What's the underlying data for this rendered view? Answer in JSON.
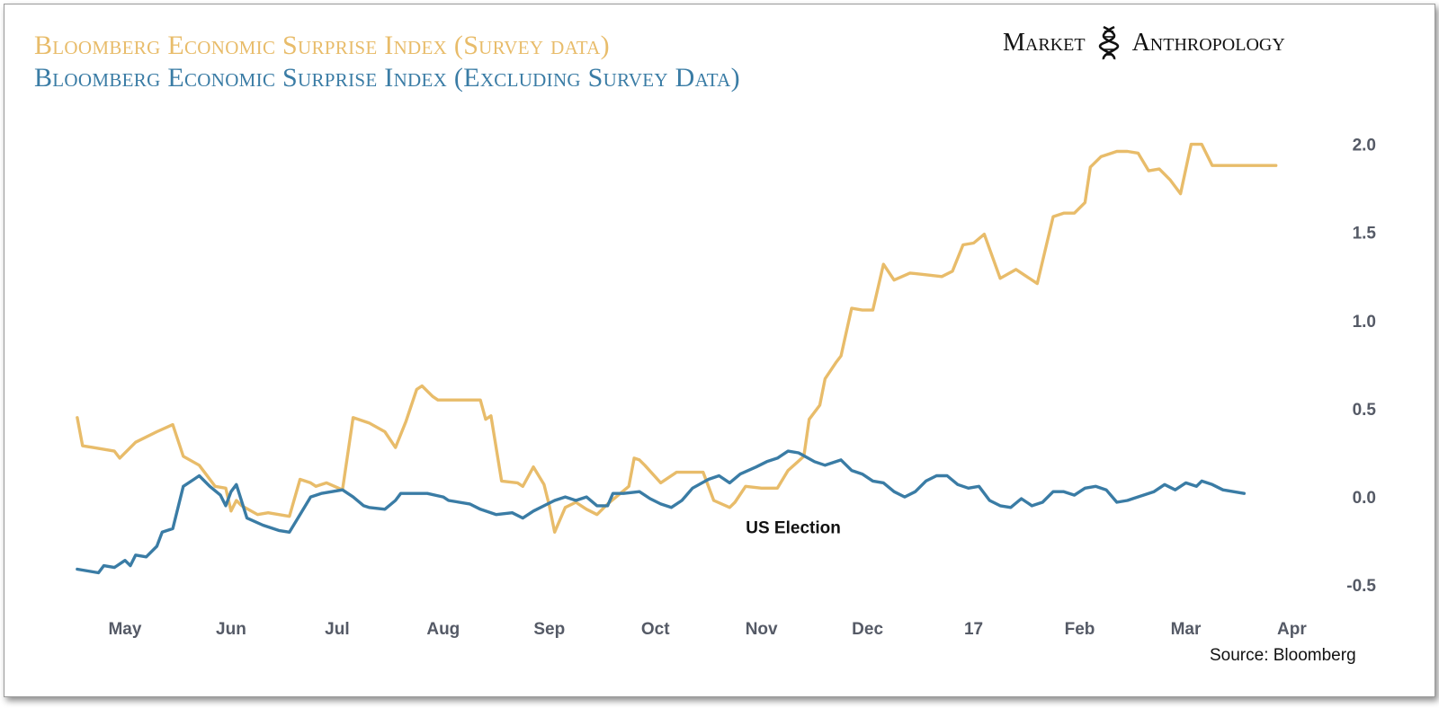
{
  "brand": {
    "left": "Market",
    "right": "Anthropology",
    "logo_icon": "dna-helix-icon"
  },
  "source": "Source: Bloomberg",
  "chart_data": {
    "type": "line",
    "title_lines": [
      "Bloomberg Economic Surprise Index (Survey data)",
      "Bloomberg Economic Surprise Index (Excluding Survey Data)"
    ],
    "xlabel": "",
    "ylabel": "",
    "x_tick_labels": [
      "May",
      "Jun",
      "Jul",
      "Aug",
      "Sep",
      "Oct",
      "Nov",
      "Dec",
      "17",
      "Feb",
      "Mar",
      "Apr"
    ],
    "y_ticks": [
      -0.5,
      0.0,
      0.5,
      1.0,
      1.5,
      2.0
    ],
    "y_tick_labels": [
      "-0.5",
      "0.0",
      "0.5",
      "1.0",
      "1.5",
      "2.0"
    ],
    "ylim": [
      -0.55,
      2.1
    ],
    "xlim": [
      -0.5,
      11.2
    ],
    "y_axis_side": "right",
    "grid": false,
    "legend": "title-colored",
    "annotations": [
      {
        "text": "US Election",
        "x": 6.3,
        "y": -0.17
      }
    ],
    "series": [
      {
        "color": "#e8bc6a",
        "x": [
          -0.45,
          -0.4,
          -0.3,
          -0.1,
          -0.05,
          0.1,
          0.3,
          0.45,
          0.55,
          0.7,
          0.85,
          0.95,
          1.0,
          1.05,
          1.1,
          1.25,
          1.35,
          1.45,
          1.55,
          1.65,
          1.75,
          1.8,
          1.9,
          2.05,
          2.15,
          2.3,
          2.45,
          2.55,
          2.65,
          2.75,
          2.8,
          2.9,
          2.95,
          3.05,
          3.15,
          3.35,
          3.4,
          3.45,
          3.55,
          3.7,
          3.75,
          3.85,
          3.95,
          4.0,
          4.05,
          4.15,
          4.25,
          4.3,
          4.35,
          4.45,
          4.55,
          4.75,
          4.8,
          4.85,
          4.9,
          5.05,
          5.2,
          5.25,
          5.45,
          5.55,
          5.7,
          5.75,
          5.85,
          6.0,
          6.15,
          6.25,
          6.4,
          6.45,
          6.55,
          6.6,
          6.7,
          6.75,
          6.85,
          6.95,
          7.05,
          7.15,
          7.25,
          7.4,
          7.55,
          7.7,
          7.8,
          7.9,
          8.0,
          8.1,
          8.25,
          8.4,
          8.6,
          8.75,
          8.85,
          8.95,
          9.05,
          9.1,
          9.2,
          9.35,
          9.45,
          9.55,
          9.65,
          9.75,
          9.85,
          9.95,
          10.05,
          10.15,
          10.25,
          10.3,
          10.4,
          10.5,
          10.6,
          10.65,
          10.75,
          10.85
        ],
        "y": [
          0.45,
          0.29,
          0.28,
          0.26,
          0.22,
          0.31,
          0.37,
          0.41,
          0.23,
          0.18,
          0.06,
          0.05,
          -0.08,
          -0.02,
          -0.05,
          -0.1,
          -0.09,
          -0.1,
          -0.11,
          0.1,
          0.08,
          0.06,
          0.08,
          0.04,
          0.45,
          0.42,
          0.37,
          0.28,
          0.43,
          0.61,
          0.63,
          0.57,
          0.55,
          0.55,
          0.55,
          0.55,
          0.44,
          0.46,
          0.09,
          0.08,
          0.06,
          0.17,
          0.07,
          -0.05,
          -0.2,
          -0.06,
          -0.03,
          -0.05,
          -0.07,
          -0.1,
          -0.04,
          0.06,
          0.22,
          0.21,
          0.18,
          0.08,
          0.14,
          0.14,
          0.14,
          -0.02,
          -0.06,
          -0.03,
          0.06,
          0.05,
          0.05,
          0.15,
          0.23,
          0.44,
          0.52,
          0.67,
          0.76,
          0.8,
          1.07,
          1.06,
          1.06,
          1.32,
          1.23,
          1.27,
          1.26,
          1.25,
          1.28,
          1.43,
          1.44,
          1.49,
          1.24,
          1.29,
          1.21,
          1.59,
          1.61,
          1.61,
          1.67,
          1.87,
          1.93,
          1.96,
          1.96,
          1.95,
          1.85,
          1.86,
          1.8,
          1.72,
          2.0,
          2.0,
          1.88,
          1.88,
          1.88,
          1.88,
          1.88,
          1.88,
          1.88,
          1.88
        ]
      },
      {
        "color": "#3a7ca5",
        "x": [
          -0.45,
          -0.25,
          -0.2,
          -0.1,
          0.0,
          0.05,
          0.1,
          0.2,
          0.3,
          0.35,
          0.45,
          0.55,
          0.65,
          0.7,
          0.8,
          0.9,
          0.95,
          1.0,
          1.05,
          1.15,
          1.3,
          1.45,
          1.55,
          1.65,
          1.75,
          1.85,
          1.95,
          2.05,
          2.15,
          2.25,
          2.3,
          2.45,
          2.55,
          2.6,
          2.7,
          2.85,
          3.0,
          3.05,
          3.25,
          3.35,
          3.5,
          3.65,
          3.75,
          3.85,
          3.95,
          4.05,
          4.15,
          4.25,
          4.35,
          4.45,
          4.55,
          4.6,
          4.7,
          4.85,
          4.95,
          5.05,
          5.15,
          5.25,
          5.35,
          5.5,
          5.6,
          5.7,
          5.8,
          5.95,
          6.05,
          6.15,
          6.25,
          6.35,
          6.5,
          6.6,
          6.75,
          6.85,
          6.95,
          7.05,
          7.15,
          7.25,
          7.35,
          7.45,
          7.55,
          7.65,
          7.75,
          7.85,
          7.95,
          8.05,
          8.15,
          8.25,
          8.35,
          8.45,
          8.55,
          8.65,
          8.75,
          8.85,
          8.95,
          9.05,
          9.15,
          9.25,
          9.35,
          9.45,
          9.5,
          9.6,
          9.7,
          9.8,
          9.9,
          10.0,
          10.1,
          10.15,
          10.25,
          10.35,
          10.45,
          10.55
        ],
        "y": [
          -0.41,
          -0.43,
          -0.39,
          -0.4,
          -0.36,
          -0.39,
          -0.33,
          -0.34,
          -0.28,
          -0.2,
          -0.18,
          0.06,
          0.1,
          0.12,
          0.06,
          0.01,
          -0.05,
          0.03,
          0.07,
          -0.12,
          -0.16,
          -0.19,
          -0.2,
          -0.1,
          0.0,
          0.02,
          0.03,
          0.04,
          0.0,
          -0.05,
          -0.06,
          -0.07,
          -0.02,
          0.02,
          0.02,
          0.02,
          0.0,
          -0.02,
          -0.04,
          -0.07,
          -0.1,
          -0.09,
          -0.12,
          -0.08,
          -0.05,
          -0.02,
          0.0,
          -0.02,
          0.0,
          -0.05,
          -0.05,
          0.02,
          0.02,
          0.03,
          -0.01,
          -0.04,
          -0.06,
          -0.02,
          0.05,
          0.1,
          0.12,
          0.08,
          0.13,
          0.17,
          0.2,
          0.22,
          0.26,
          0.25,
          0.2,
          0.18,
          0.21,
          0.15,
          0.13,
          0.09,
          0.08,
          0.03,
          0.0,
          0.03,
          0.09,
          0.12,
          0.12,
          0.07,
          0.05,
          0.06,
          -0.02,
          -0.05,
          -0.06,
          -0.01,
          -0.05,
          -0.03,
          0.03,
          0.03,
          0.01,
          0.05,
          0.06,
          0.04,
          -0.03,
          -0.02,
          -0.01,
          0.01,
          0.03,
          0.07,
          0.04,
          0.08,
          0.06,
          0.09,
          0.07,
          0.04,
          0.03,
          0.02
        ]
      }
    ]
  }
}
